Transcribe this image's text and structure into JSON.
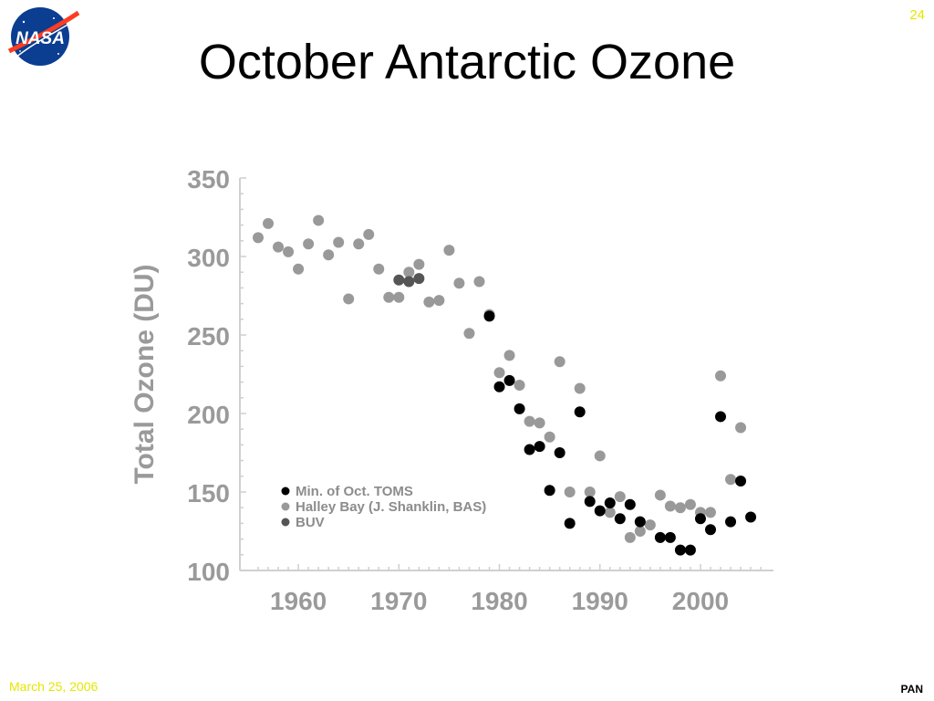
{
  "slide": {
    "title": "October Antarctic Ozone",
    "page_number": "24",
    "date": "March 25, 2006",
    "footer_tag": "PAN",
    "logo_text": "NASA"
  },
  "colors": {
    "toms": "#000000",
    "halley": "#999999",
    "buv": "#555555",
    "axis_text": "#9a9a9a",
    "footer_yellow": "#e6e600"
  },
  "chart_data": {
    "type": "scatter",
    "title": "",
    "xlabel": "",
    "ylabel": "Total Ozone (DU)",
    "xlim": [
      1955,
      2007
    ],
    "ylim": [
      100,
      350
    ],
    "x_ticks": [
      1960,
      1970,
      1980,
      1990,
      2000
    ],
    "y_ticks": [
      100,
      150,
      200,
      250,
      300,
      350
    ],
    "grid": false,
    "legend_position": "bottom-left",
    "series": [
      {
        "name": "Halley Bay (J. Shanklin, BAS)",
        "color": "#999999",
        "points": [
          [
            1956,
            312
          ],
          [
            1957,
            321
          ],
          [
            1958,
            306
          ],
          [
            1959,
            303
          ],
          [
            1960,
            292
          ],
          [
            1961,
            308
          ],
          [
            1962,
            323
          ],
          [
            1963,
            301
          ],
          [
            1964,
            309
          ],
          [
            1965,
            273
          ],
          [
            1966,
            308
          ],
          [
            1967,
            314
          ],
          [
            1968,
            292
          ],
          [
            1969,
            274
          ],
          [
            1970,
            274
          ],
          [
            1971,
            290
          ],
          [
            1972,
            295
          ],
          [
            1973,
            271
          ],
          [
            1974,
            272
          ],
          [
            1975,
            304
          ],
          [
            1976,
            283
          ],
          [
            1977,
            251
          ],
          [
            1978,
            284
          ],
          [
            1979,
            263
          ],
          [
            1980,
            226
          ],
          [
            1981,
            237
          ],
          [
            1982,
            218
          ],
          [
            1983,
            195
          ],
          [
            1984,
            194
          ],
          [
            1985,
            185
          ],
          [
            1986,
            233
          ],
          [
            1987,
            150
          ],
          [
            1988,
            216
          ],
          [
            1989,
            150
          ],
          [
            1990,
            173
          ],
          [
            1991,
            137
          ],
          [
            1992,
            147
          ],
          [
            1993,
            121
          ],
          [
            1994,
            125
          ],
          [
            1995,
            129
          ],
          [
            1996,
            148
          ],
          [
            1997,
            141
          ],
          [
            1998,
            140
          ],
          [
            1999,
            142
          ],
          [
            2000,
            137
          ],
          [
            2001,
            137
          ],
          [
            2002,
            224
          ],
          [
            2003,
            158
          ],
          [
            2004,
            191
          ]
        ]
      },
      {
        "name": "Min. of Oct. TOMS",
        "color": "#000000",
        "points": [
          [
            1979,
            262
          ],
          [
            1980,
            217
          ],
          [
            1981,
            221
          ],
          [
            1982,
            203
          ],
          [
            1983,
            177
          ],
          [
            1984,
            179
          ],
          [
            1985,
            151
          ],
          [
            1986,
            175
          ],
          [
            1987,
            130
          ],
          [
            1988,
            201
          ],
          [
            1989,
            144
          ],
          [
            1990,
            138
          ],
          [
            1991,
            143
          ],
          [
            1992,
            133
          ],
          [
            1993,
            142
          ],
          [
            1994,
            131
          ],
          [
            1996,
            121
          ],
          [
            1997,
            121
          ],
          [
            1998,
            113
          ],
          [
            1999,
            113
          ],
          [
            2000,
            133
          ],
          [
            2001,
            126
          ],
          [
            2002,
            198
          ],
          [
            2003,
            131
          ],
          [
            2004,
            157
          ],
          [
            2005,
            134
          ]
        ]
      },
      {
        "name": "BUV",
        "color": "#555555",
        "points": [
          [
            1970,
            285
          ],
          [
            1971,
            284
          ],
          [
            1972,
            286
          ]
        ]
      }
    ]
  }
}
